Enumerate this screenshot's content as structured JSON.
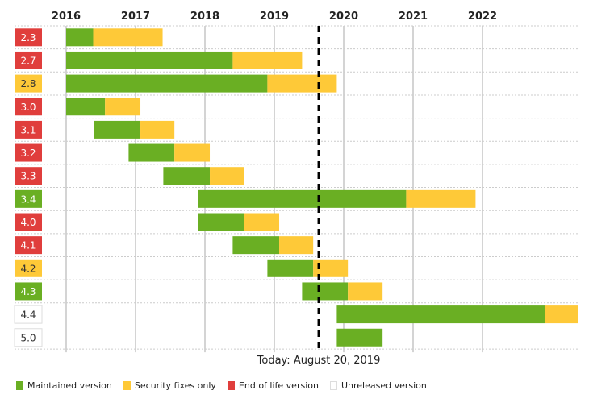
{
  "chart_data": {
    "type": "timeline",
    "x_axis": {
      "ticks": [
        "2016",
        "2017",
        "2018",
        "2019",
        "2020",
        "2021",
        "2022"
      ],
      "range": [
        2016.0,
        2023.37
      ],
      "position": "top"
    },
    "grid": true,
    "colors": {
      "maintained": "#6aaf23",
      "security": "#fec938",
      "eol": "#e03e3c",
      "unreleased": "#ffffff"
    },
    "today": {
      "value": 2019.64,
      "label": "Today: August 20, 2019"
    },
    "series": [
      {
        "version": "2.3",
        "status": "eol",
        "start": 2016.0,
        "maintained_until": 2016.39,
        "security_until": 2017.39
      },
      {
        "version": "2.7",
        "status": "eol",
        "start": 2016.0,
        "maintained_until": 2018.4,
        "security_until": 2019.4
      },
      {
        "version": "2.8",
        "status": "security",
        "start": 2016.0,
        "maintained_until": 2018.9,
        "security_until": 2019.9
      },
      {
        "version": "3.0",
        "status": "eol",
        "start": 2016.0,
        "maintained_until": 2016.56,
        "security_until": 2017.07
      },
      {
        "version": "3.1",
        "status": "eol",
        "start": 2016.4,
        "maintained_until": 2017.07,
        "security_until": 2017.56
      },
      {
        "version": "3.2",
        "status": "eol",
        "start": 2016.9,
        "maintained_until": 2017.56,
        "security_until": 2018.07
      },
      {
        "version": "3.3",
        "status": "eol",
        "start": 2017.4,
        "maintained_until": 2018.07,
        "security_until": 2018.56
      },
      {
        "version": "3.4",
        "status": "maintained",
        "start": 2017.9,
        "maintained_until": 2020.9,
        "security_until": 2021.9
      },
      {
        "version": "4.0",
        "status": "eol",
        "start": 2017.9,
        "maintained_until": 2018.56,
        "security_until": 2019.07
      },
      {
        "version": "4.1",
        "status": "eol",
        "start": 2018.4,
        "maintained_until": 2019.07,
        "security_until": 2019.56
      },
      {
        "version": "4.2",
        "status": "security",
        "start": 2018.9,
        "maintained_until": 2019.56,
        "security_until": 2020.06
      },
      {
        "version": "4.3",
        "status": "maintained",
        "start": 2019.4,
        "maintained_until": 2020.06,
        "security_until": 2020.56
      },
      {
        "version": "4.4",
        "status": "unreleased",
        "start": 2019.9,
        "maintained_until": 2022.9,
        "security_until": 2023.9
      },
      {
        "version": "5.0",
        "status": "unreleased",
        "start": 2019.9,
        "maintained_until": 2020.56,
        "security_until": 2020.56
      }
    ],
    "legend": [
      {
        "key": "maintained",
        "label": "Maintained version"
      },
      {
        "key": "security",
        "label": "Security fixes only"
      },
      {
        "key": "eol",
        "label": "End of life version"
      },
      {
        "key": "unreleased",
        "label": "Unreleased version"
      }
    ]
  }
}
